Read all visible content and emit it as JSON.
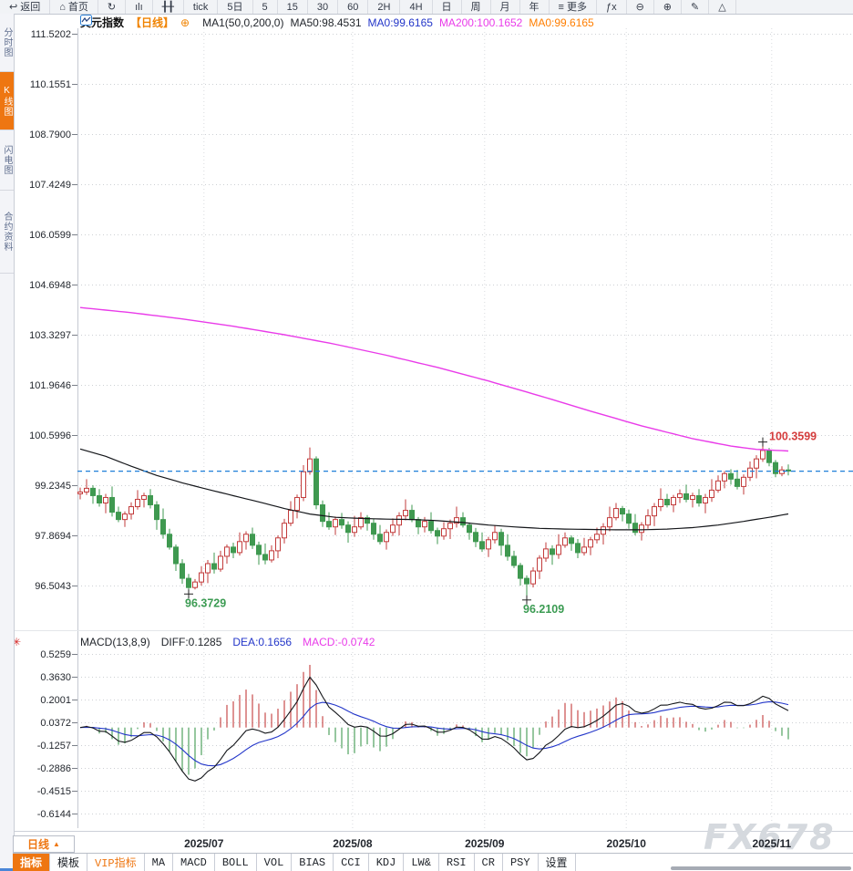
{
  "toolbar": {
    "items": [
      {
        "name": "back",
        "icon": "↩",
        "label": "返回"
      },
      {
        "name": "home",
        "icon": "⌂",
        "label": "首页"
      },
      {
        "name": "refresh",
        "icon": "↻",
        "label": ""
      },
      {
        "name": "stats",
        "icon": "ılı",
        "label": ""
      },
      {
        "name": "sliders",
        "icon": "╂╂",
        "label": ""
      },
      {
        "name": "interval-tick",
        "icon": "",
        "label": "tick"
      },
      {
        "name": "interval-5d",
        "icon": "",
        "label": "5日"
      },
      {
        "name": "interval-5",
        "icon": "",
        "label": "5"
      },
      {
        "name": "interval-15",
        "icon": "",
        "label": "15"
      },
      {
        "name": "interval-30",
        "icon": "",
        "label": "30"
      },
      {
        "name": "interval-60",
        "icon": "",
        "label": "60"
      },
      {
        "name": "interval-2h",
        "icon": "",
        "label": "2H"
      },
      {
        "name": "interval-4h",
        "icon": "",
        "label": "4H"
      },
      {
        "name": "interval-day",
        "icon": "",
        "label": "日"
      },
      {
        "name": "interval-week",
        "icon": "",
        "label": "周"
      },
      {
        "name": "interval-month",
        "icon": "",
        "label": "月"
      },
      {
        "name": "interval-year",
        "icon": "",
        "label": "年"
      },
      {
        "name": "more",
        "icon": "≡",
        "label": "更多"
      },
      {
        "name": "formula",
        "icon": "ƒx",
        "label": ""
      },
      {
        "name": "zoom-out",
        "icon": "⊖",
        "label": ""
      },
      {
        "name": "zoom-in",
        "icon": "⊕",
        "label": ""
      },
      {
        "name": "draw",
        "icon": "✎",
        "label": ""
      },
      {
        "name": "shapes",
        "icon": "△",
        "label": ""
      }
    ]
  },
  "sidebar": {
    "tabs": [
      {
        "label": "分时图",
        "active": false
      },
      {
        "label": "K线图",
        "active": true
      },
      {
        "label": "闪电图",
        "active": false
      },
      {
        "label": "合约资料",
        "active": false
      }
    ]
  },
  "legend": {
    "symbol": "美元指数",
    "period": "【日线】",
    "add_icon": "⊕",
    "ma_settings": "MA1(50,0,200,0)",
    "ma50": "MA50:98.4531",
    "ma0_blue": "MA0:99.6165",
    "ma200": "MA200:100.1652",
    "ma0_orange": "MA0:99.6165"
  },
  "macd_legend": {
    "params": "MACD(13,8,9)",
    "diff": "DIFF:0.1285",
    "dea": "DEA:0.1656",
    "macd": "MACD:-0.0742",
    "settings_icon": "✳"
  },
  "period_selector": {
    "label": "日线",
    "arrow": "▲"
  },
  "bottom_tabs": {
    "tabs": [
      {
        "label": "指标",
        "active": true,
        "vip": false
      },
      {
        "label": "模板",
        "active": false,
        "vip": false
      },
      {
        "label": "VIP指标",
        "active": false,
        "vip": true
      },
      {
        "label": "MA",
        "active": false,
        "vip": false
      },
      {
        "label": "MACD",
        "active": false,
        "vip": false
      },
      {
        "label": "BOLL",
        "active": false,
        "vip": false
      },
      {
        "label": "VOL",
        "active": false,
        "vip": false
      },
      {
        "label": "BIAS",
        "active": false,
        "vip": false
      },
      {
        "label": "CCI",
        "active": false,
        "vip": false
      },
      {
        "label": "KDJ",
        "active": false,
        "vip": false
      },
      {
        "label": "LW&",
        "active": false,
        "vip": false
      },
      {
        "label": "RSI",
        "active": false,
        "vip": false
      },
      {
        "label": "CR",
        "active": false,
        "vip": false
      },
      {
        "label": "PSY",
        "active": false,
        "vip": false
      },
      {
        "label": "设置",
        "active": false,
        "vip": false
      }
    ]
  },
  "watermark": "FX678",
  "colors": {
    "accent_orange": "#ee7611",
    "up_red": "#c23b3b",
    "down_green": "#3f9950",
    "ma50_line": "#14161a",
    "ma200_line": "#e93be9",
    "dea_blue": "#2336c9",
    "price_dash_line": "#1f7fd9",
    "annotation_green": "#3b9b52",
    "annotation_red": "#d43c3c"
  },
  "chart_data": {
    "type": "candlestick",
    "title": "美元指数 日线",
    "y_axis_labels": [
      "111.5202",
      "110.1551",
      "108.7900",
      "107.4249",
      "106.0599",
      "104.6948",
      "103.3297",
      "101.9646",
      "100.5996",
      "99.2345",
      "97.8694",
      "96.5043"
    ],
    "x_axis_labels": [
      "2025/07",
      "2025/08",
      "2025/09",
      "2025/10",
      "2025/11"
    ],
    "month_boundary_indices": [
      19.4,
      42.7,
      63.4,
      85.6,
      108.4
    ],
    "last_price": 99.6165,
    "annotations": [
      {
        "text": "100.3599",
        "index": 107,
        "price": 100.3599,
        "pos": "high"
      },
      {
        "text": "96.3729",
        "index": 17,
        "price": 96.3729,
        "pos": "low"
      },
      {
        "text": "96.2109",
        "index": 70,
        "price": 96.2109,
        "pos": "low"
      }
    ],
    "candles": [
      [
        99.0,
        99.17,
        98.85,
        99.05
      ],
      [
        99.05,
        99.4,
        98.97,
        99.15
      ],
      [
        99.15,
        99.23,
        98.73,
        98.95
      ],
      [
        98.95,
        99.13,
        98.65,
        98.75
      ],
      [
        98.75,
        99.0,
        98.47,
        98.9
      ],
      [
        98.9,
        99.2,
        98.38,
        98.5
      ],
      [
        98.5,
        98.65,
        98.23,
        98.3
      ],
      [
        98.3,
        98.52,
        98.1,
        98.45
      ],
      [
        98.45,
        98.77,
        98.3,
        98.65
      ],
      [
        98.65,
        99.1,
        98.57,
        98.85
      ],
      [
        98.85,
        99.03,
        98.63,
        98.95
      ],
      [
        98.95,
        99.13,
        98.6,
        98.7
      ],
      [
        98.7,
        98.8,
        98.02,
        98.3
      ],
      [
        98.3,
        98.6,
        97.78,
        97.9
      ],
      [
        97.9,
        98.05,
        97.48,
        97.55
      ],
      [
        97.55,
        97.62,
        96.9,
        97.1
      ],
      [
        97.1,
        97.22,
        96.55,
        96.7
      ],
      [
        96.7,
        96.82,
        96.37,
        96.45
      ],
      [
        96.45,
        96.68,
        96.4,
        96.6
      ],
      [
        96.6,
        97.03,
        96.5,
        96.85
      ],
      [
        96.85,
        97.2,
        96.57,
        97.1
      ],
      [
        97.1,
        97.4,
        96.83,
        96.95
      ],
      [
        96.95,
        97.45,
        96.88,
        97.3
      ],
      [
        97.3,
        97.62,
        97.1,
        97.55
      ],
      [
        97.55,
        97.67,
        97.25,
        97.4
      ],
      [
        97.4,
        97.95,
        97.32,
        97.7
      ],
      [
        97.7,
        97.98,
        97.48,
        97.9
      ],
      [
        97.9,
        98.08,
        97.5,
        97.6
      ],
      [
        97.6,
        97.7,
        97.07,
        97.35
      ],
      [
        97.35,
        97.65,
        97.08,
        97.2
      ],
      [
        97.2,
        97.6,
        97.13,
        97.45
      ],
      [
        97.45,
        97.87,
        97.25,
        97.8
      ],
      [
        97.8,
        98.32,
        97.65,
        98.2
      ],
      [
        98.2,
        98.8,
        98.12,
        98.55
      ],
      [
        98.55,
        98.98,
        98.33,
        98.9
      ],
      [
        98.9,
        99.78,
        98.8,
        99.6
      ],
      [
        99.6,
        100.26,
        99.52,
        99.95
      ],
      [
        99.95,
        100.02,
        98.58,
        98.7
      ],
      [
        98.7,
        98.82,
        98.1,
        98.25
      ],
      [
        98.25,
        98.5,
        98.02,
        98.1
      ],
      [
        98.1,
        98.38,
        97.88,
        98.3
      ],
      [
        98.3,
        98.48,
        98.05,
        98.15
      ],
      [
        98.15,
        98.25,
        97.67,
        97.95
      ],
      [
        97.95,
        98.4,
        97.83,
        98.1
      ],
      [
        98.1,
        98.5,
        98.03,
        98.35
      ],
      [
        98.35,
        98.42,
        98.0,
        98.2
      ],
      [
        98.2,
        98.32,
        97.75,
        97.9
      ],
      [
        97.9,
        98.15,
        97.62,
        97.7
      ],
      [
        97.7,
        98.03,
        97.48,
        97.95
      ],
      [
        97.95,
        98.33,
        97.85,
        98.15
      ],
      [
        98.15,
        98.5,
        97.87,
        98.4
      ],
      [
        98.4,
        98.85,
        98.28,
        98.55
      ],
      [
        98.55,
        98.7,
        98.23,
        98.3
      ],
      [
        98.3,
        98.37,
        97.9,
        98.1
      ],
      [
        98.1,
        98.37,
        97.95,
        98.25
      ],
      [
        98.25,
        98.5,
        97.92,
        98.0
      ],
      [
        98.0,
        98.08,
        97.63,
        97.85
      ],
      [
        97.85,
        98.23,
        97.75,
        98.05
      ],
      [
        98.05,
        98.3,
        97.77,
        98.2
      ],
      [
        98.2,
        98.65,
        98.08,
        98.35
      ],
      [
        98.35,
        98.5,
        98.08,
        98.15
      ],
      [
        98.15,
        98.22,
        97.75,
        97.95
      ],
      [
        97.95,
        98.07,
        97.55,
        97.7
      ],
      [
        97.7,
        97.95,
        97.42,
        97.5
      ],
      [
        97.5,
        97.83,
        97.28,
        97.75
      ],
      [
        97.75,
        98.13,
        97.65,
        97.95
      ],
      [
        97.95,
        98.05,
        97.32,
        97.6
      ],
      [
        97.6,
        97.9,
        97.18,
        97.3
      ],
      [
        97.3,
        97.45,
        96.98,
        97.05
      ],
      [
        97.05,
        97.12,
        96.5,
        96.7
      ],
      [
        96.7,
        96.78,
        96.21,
        96.55
      ],
      [
        96.55,
        97.0,
        96.45,
        96.9
      ],
      [
        96.9,
        97.33,
        96.68,
        97.25
      ],
      [
        97.25,
        97.68,
        97.15,
        97.5
      ],
      [
        97.5,
        97.6,
        97.07,
        97.35
      ],
      [
        97.35,
        97.9,
        97.23,
        97.6
      ],
      [
        97.6,
        97.95,
        97.53,
        97.8
      ],
      [
        97.8,
        97.87,
        97.45,
        97.65
      ],
      [
        97.65,
        97.77,
        97.25,
        97.4
      ],
      [
        97.4,
        97.8,
        97.32,
        97.55
      ],
      [
        97.55,
        97.83,
        97.33,
        97.75
      ],
      [
        97.75,
        98.08,
        97.65,
        97.9
      ],
      [
        97.9,
        98.2,
        97.62,
        98.1
      ],
      [
        98.1,
        98.65,
        97.98,
        98.35
      ],
      [
        98.35,
        98.75,
        98.28,
        98.6
      ],
      [
        98.6,
        98.67,
        98.25,
        98.45
      ],
      [
        98.45,
        98.57,
        98.05,
        98.2
      ],
      [
        98.2,
        98.45,
        97.87,
        97.95
      ],
      [
        97.95,
        98.23,
        97.73,
        98.15
      ],
      [
        98.15,
        98.58,
        98.05,
        98.4
      ],
      [
        98.4,
        98.75,
        98.12,
        98.65
      ],
      [
        98.65,
        99.15,
        98.53,
        98.85
      ],
      [
        98.85,
        99.0,
        98.63,
        98.7
      ],
      [
        98.7,
        98.97,
        98.5,
        98.9
      ],
      [
        98.9,
        99.12,
        98.75,
        99.0
      ],
      [
        99.0,
        99.25,
        98.77,
        98.85
      ],
      [
        98.85,
        99.03,
        98.63,
        98.95
      ],
      [
        98.95,
        99.13,
        98.65,
        98.75
      ],
      [
        98.75,
        99.0,
        98.47,
        98.9
      ],
      [
        98.9,
        99.4,
        98.78,
        99.1
      ],
      [
        99.1,
        99.5,
        99.03,
        99.35
      ],
      [
        99.35,
        99.62,
        99.15,
        99.55
      ],
      [
        99.55,
        99.67,
        99.25,
        99.4
      ],
      [
        99.4,
        99.65,
        99.12,
        99.2
      ],
      [
        99.2,
        99.53,
        98.98,
        99.45
      ],
      [
        99.45,
        99.88,
        99.35,
        99.7
      ],
      [
        99.7,
        100.05,
        99.42,
        99.95
      ],
      [
        99.95,
        100.36,
        99.87,
        100.18
      ],
      [
        100.18,
        100.25,
        99.75,
        99.85
      ],
      [
        99.85,
        99.92,
        99.45,
        99.55
      ],
      [
        99.55,
        99.75,
        99.48,
        99.65
      ],
      [
        99.65,
        99.8,
        99.5,
        99.62
      ]
    ],
    "ma50_points": [
      [
        0,
        100.22
      ],
      [
        4,
        100.02
      ],
      [
        8,
        99.75
      ],
      [
        12,
        99.5
      ],
      [
        16,
        99.3
      ],
      [
        20,
        99.12
      ],
      [
        24,
        98.95
      ],
      [
        28,
        98.78
      ],
      [
        32,
        98.6
      ],
      [
        36,
        98.45
      ],
      [
        40,
        98.36
      ],
      [
        44,
        98.33
      ],
      [
        48,
        98.31
      ],
      [
        52,
        98.3
      ],
      [
        56,
        98.27
      ],
      [
        60,
        98.22
      ],
      [
        64,
        98.15
      ],
      [
        68,
        98.1
      ],
      [
        72,
        98.06
      ],
      [
        76,
        98.04
      ],
      [
        80,
        98.03
      ],
      [
        84,
        98.02
      ],
      [
        88,
        98.02
      ],
      [
        92,
        98.04
      ],
      [
        96,
        98.08
      ],
      [
        100,
        98.15
      ],
      [
        104,
        98.25
      ],
      [
        108,
        98.36
      ],
      [
        111,
        98.4531
      ]
    ],
    "ma200_points": [
      [
        0,
        104.07
      ],
      [
        8,
        103.93
      ],
      [
        16,
        103.76
      ],
      [
        24,
        103.56
      ],
      [
        32,
        103.33
      ],
      [
        40,
        103.07
      ],
      [
        48,
        102.77
      ],
      [
        56,
        102.44
      ],
      [
        64,
        102.07
      ],
      [
        72,
        101.67
      ],
      [
        80,
        101.25
      ],
      [
        88,
        100.85
      ],
      [
        96,
        100.5
      ],
      [
        102,
        100.3
      ],
      [
        106,
        100.21
      ],
      [
        111,
        100.1652
      ]
    ],
    "macd": {
      "params": [
        13,
        8,
        9
      ],
      "axis_labels": [
        "0.5259",
        "0.3630",
        "0.2001",
        "0.0372",
        "-0.1257",
        "-0.2886",
        "-0.4515",
        "-0.6144"
      ],
      "diff_last": 0.1285,
      "dea_last": 0.1656,
      "hist_last": -0.0742
    }
  }
}
